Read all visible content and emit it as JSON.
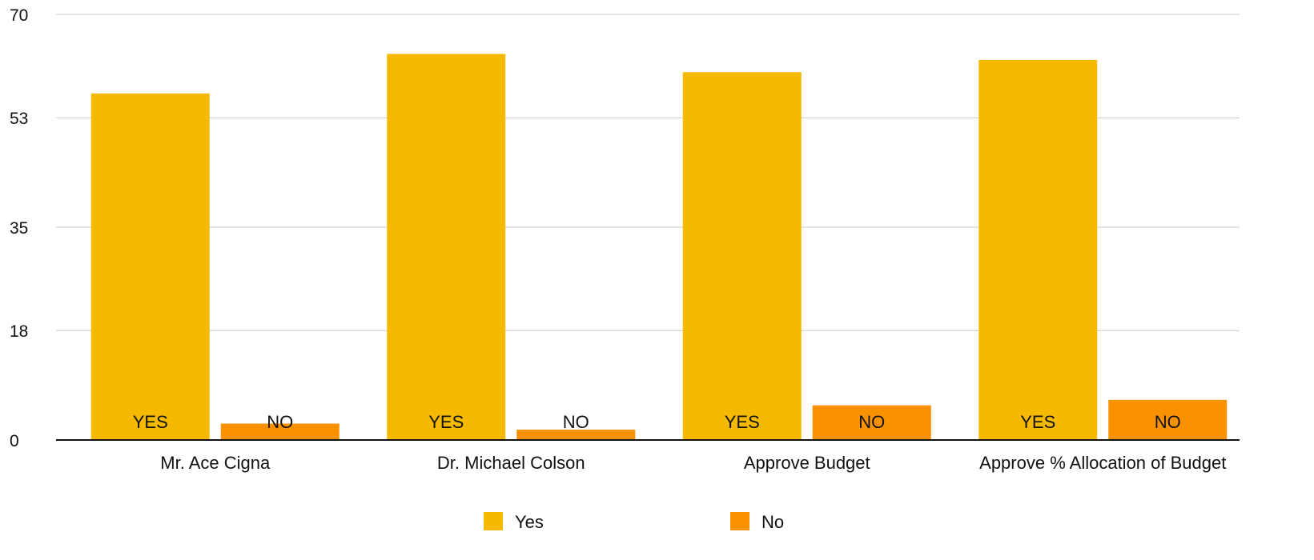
{
  "chart_data": {
    "type": "bar",
    "title": "",
    "xlabel": "",
    "ylabel": "",
    "ylim": [
      0,
      70
    ],
    "yticks": [
      0,
      18,
      35,
      53,
      70
    ],
    "grid": true,
    "legend_position": "bottom",
    "categories": [
      "Mr. Ace Cigna",
      "Dr. Michael Colson",
      "Approve Budget",
      "Approve % Allocation of Budget"
    ],
    "series": [
      {
        "name": "Yes",
        "color": "#F5BA00",
        "bar_label": "YES",
        "values": [
          57,
          63.5,
          60.5,
          62.5
        ]
      },
      {
        "name": "No",
        "color": "#FA9200",
        "bar_label": "NO",
        "values": [
          2.7,
          1.7,
          5.7,
          6.6
        ]
      }
    ]
  }
}
